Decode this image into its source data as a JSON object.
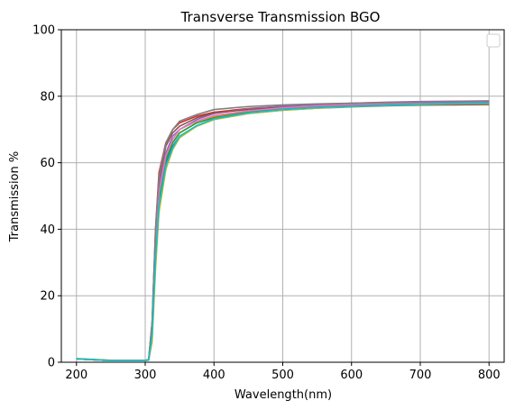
{
  "chart_data": {
    "type": "line",
    "title": "Transverse Transmission BGO",
    "xlabel": "Wavelength(nm)",
    "ylabel": "Transmission %",
    "xlim": [
      178,
      822
    ],
    "ylim": [
      0,
      100
    ],
    "xticks": [
      200,
      300,
      400,
      500,
      600,
      700,
      800
    ],
    "yticks": [
      0,
      20,
      40,
      60,
      80,
      100
    ],
    "grid": true,
    "legend": "top-right (empty)",
    "x": [
      200,
      250,
      300,
      305,
      310,
      315,
      320,
      330,
      340,
      350,
      375,
      400,
      450,
      500,
      550,
      600,
      650,
      700,
      750,
      800
    ],
    "series": [
      {
        "color": "#1f77b4",
        "values": [
          1.0,
          0.5,
          0.5,
          0.7,
          8,
          32,
          48,
          60,
          65,
          68,
          71,
          73,
          74.8,
          75.8,
          76.4,
          76.8,
          77.1,
          77.3,
          77.5,
          77.6
        ]
      },
      {
        "color": "#ff7f0e",
        "values": [
          1.0,
          0.5,
          0.5,
          0.7,
          9,
          34,
          50,
          61,
          66,
          69,
          72,
          73.8,
          75.5,
          76.4,
          77.0,
          77.4,
          77.7,
          77.9,
          78.1,
          78.2
        ]
      },
      {
        "color": "#2ca02c",
        "values": [
          1.1,
          0.6,
          0.5,
          0.8,
          8,
          33,
          49,
          61,
          66,
          69,
          72,
          73.5,
          75.2,
          76.2,
          76.8,
          77.2,
          77.5,
          77.8,
          78.0,
          78.1
        ]
      },
      {
        "color": "#d62728",
        "values": [
          1.0,
          0.5,
          0.5,
          0.9,
          12,
          40,
          57,
          66,
          70,
          72,
          74,
          75.2,
          76.3,
          77.0,
          77.4,
          77.7,
          77.9,
          78.0,
          78.1,
          78.1
        ]
      },
      {
        "color": "#9467bd",
        "values": [
          1.0,
          0.5,
          0.5,
          0.7,
          10,
          36,
          53,
          63,
          68,
          70,
          73,
          74.8,
          76.2,
          77.0,
          77.5,
          77.9,
          78.2,
          78.4,
          78.5,
          78.6
        ]
      },
      {
        "color": "#8c564b",
        "values": [
          1.0,
          0.5,
          0.5,
          0.8,
          11,
          38,
          55,
          65,
          69,
          71,
          73.5,
          75.0,
          76.0,
          76.6,
          77.0,
          77.2,
          77.3,
          77.4,
          77.4,
          77.5
        ]
      },
      {
        "color": "#e377c2",
        "values": [
          1.0,
          0.5,
          0.5,
          0.7,
          9,
          35,
          51,
          62,
          67,
          70,
          72.5,
          74.2,
          75.6,
          76.5,
          77.1,
          77.5,
          77.8,
          78.0,
          78.2,
          78.3
        ]
      },
      {
        "color": "#7f7f7f",
        "values": [
          1.0,
          0.5,
          0.5,
          0.8,
          12,
          40,
          56,
          66,
          70,
          72.5,
          74.5,
          76.0,
          76.9,
          77.4,
          77.7,
          77.9,
          78.1,
          78.2,
          78.3,
          78.4
        ]
      },
      {
        "color": "#bcbd22",
        "values": [
          1.0,
          0.5,
          0.5,
          0.6,
          6,
          28,
          45,
          58,
          64,
          67.5,
          71,
          73,
          74.8,
          75.8,
          76.4,
          76.9,
          77.2,
          77.5,
          77.7,
          77.8
        ]
      },
      {
        "color": "#17becf",
        "values": [
          1.0,
          0.5,
          0.5,
          0.7,
          8,
          31,
          47,
          59,
          64.5,
          68,
          71.2,
          73.2,
          75.0,
          76.0,
          76.6,
          77.0,
          77.3,
          77.6,
          77.8,
          77.9
        ]
      }
    ]
  }
}
